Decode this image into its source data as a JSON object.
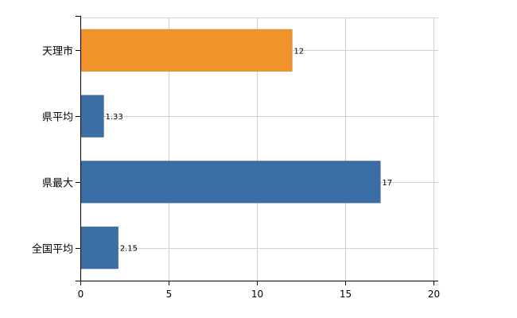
{
  "chart_data": {
    "type": "bar",
    "orientation": "horizontal",
    "categories": [
      "天理市",
      "県平均",
      "県最大",
      "全国平均"
    ],
    "values": [
      12,
      1.33,
      17,
      2.15
    ],
    "data_labels": [
      "12",
      "1.33",
      "17",
      "2.15"
    ],
    "bar_colors": [
      "#f0932b",
      "#3a6ea5",
      "#3a6ea5",
      "#3a6ea5"
    ],
    "xlim": [
      0,
      20
    ],
    "x_ticks": [
      0,
      5,
      10,
      15,
      20
    ],
    "x_tick_labels": [
      "0",
      "5",
      "10",
      "15",
      "20"
    ],
    "title": "",
    "xlabel": "",
    "ylabel": "",
    "grid": true,
    "grid_color": "#d0d0d0"
  }
}
